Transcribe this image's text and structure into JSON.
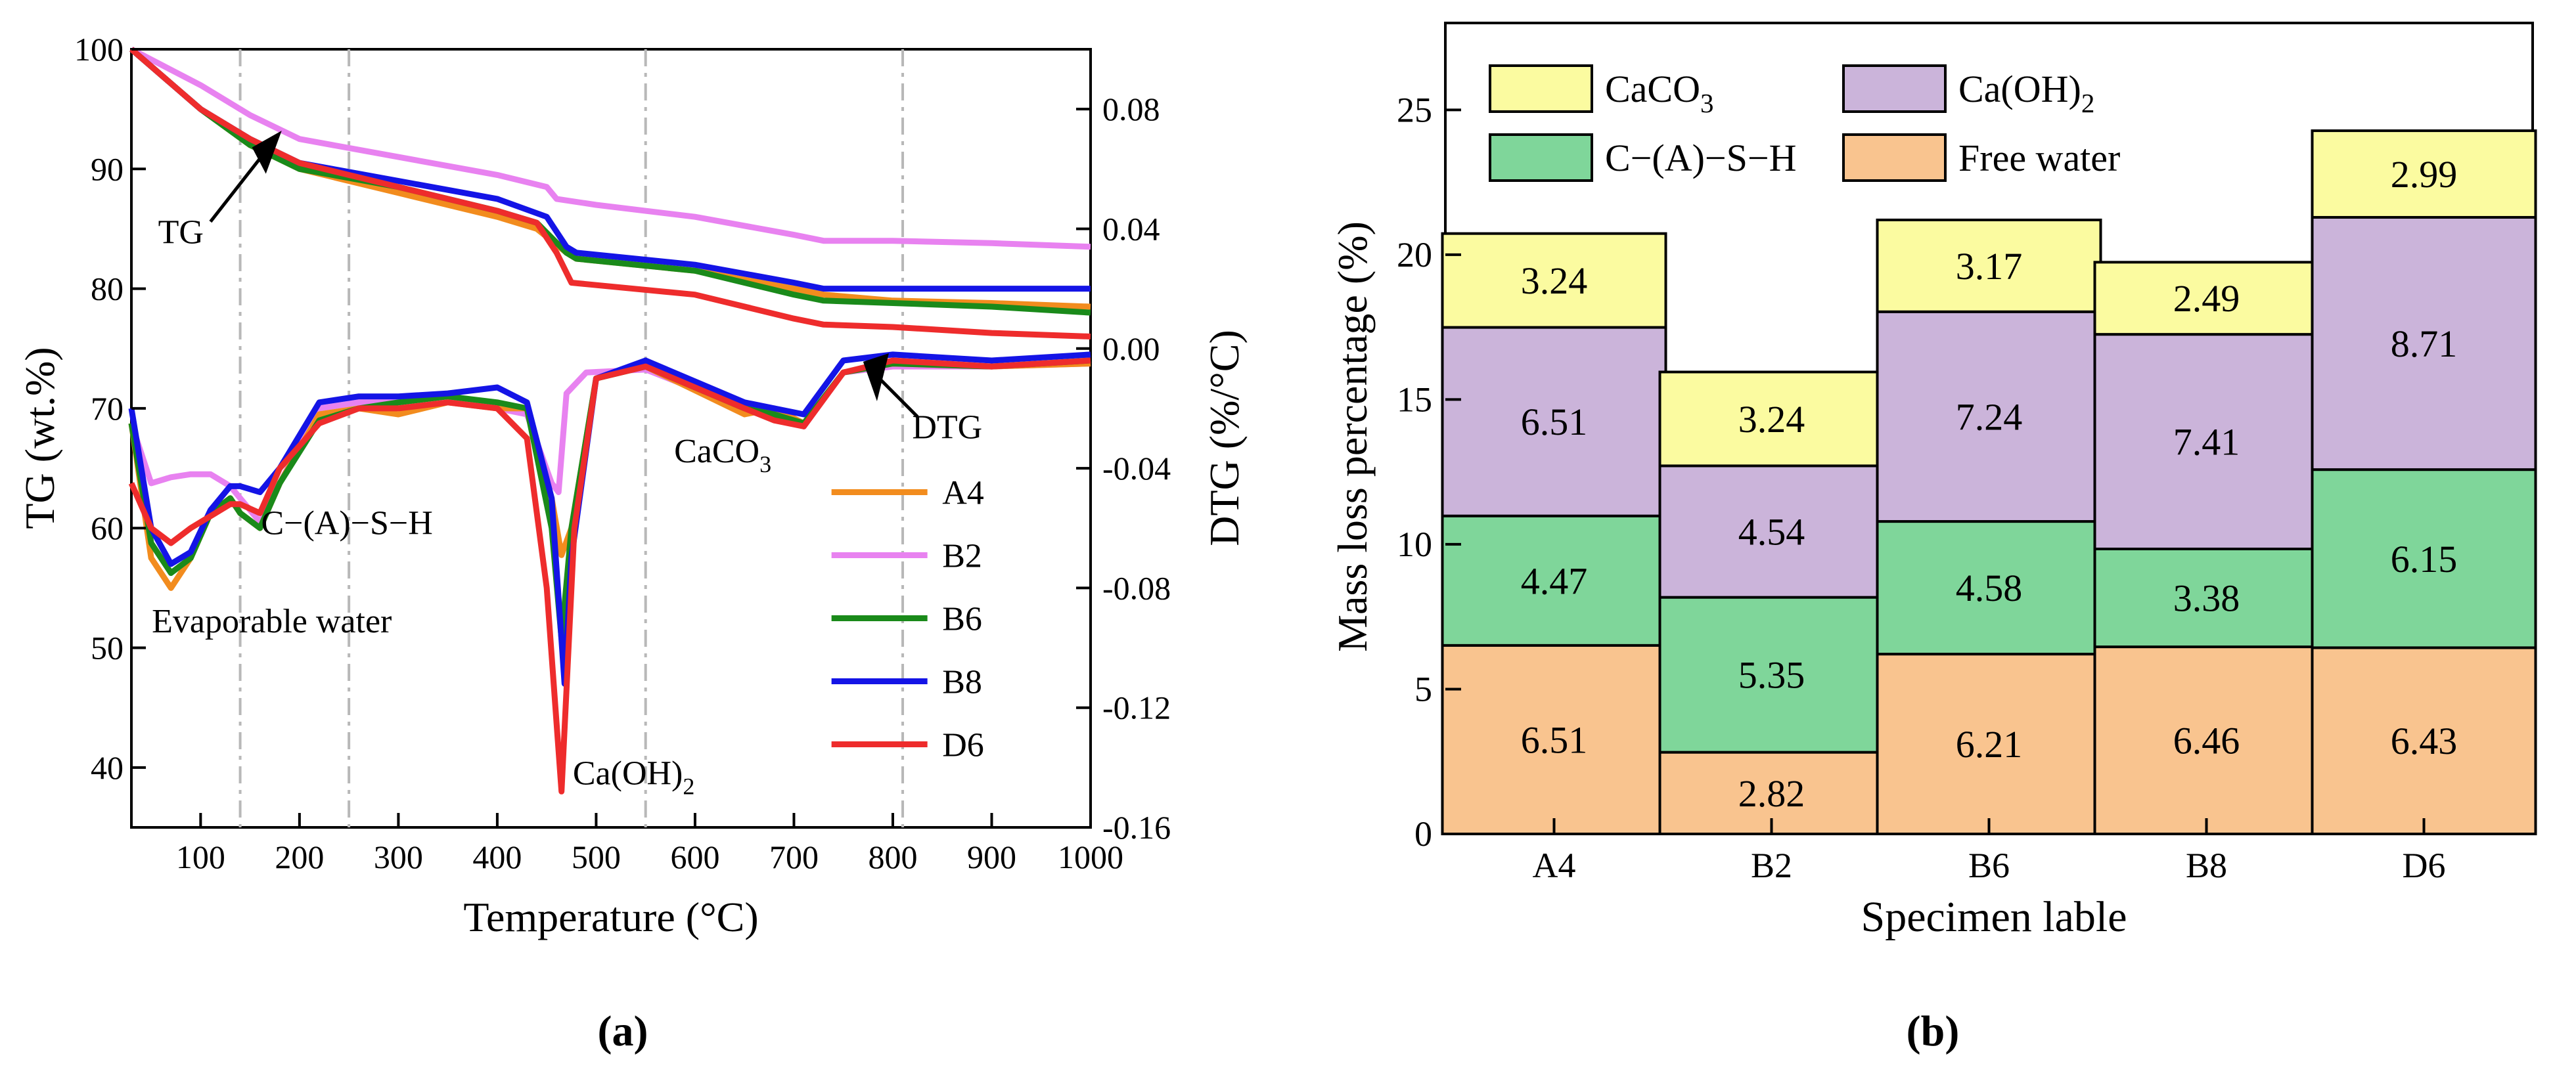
{
  "chart_data": [
    {
      "type": "line",
      "panel_label": "(a)",
      "xlabel": "Temperature (°C)",
      "ylabel": "TG (wt.%)",
      "y2label": "DTG (%/°C)",
      "xlim": [
        30,
        1000
      ],
      "ylim": [
        35,
        100
      ],
      "y2lim": [
        -0.16,
        0.1
      ],
      "x_ticks": [
        100,
        200,
        300,
        400,
        500,
        600,
        700,
        800,
        900,
        1000
      ],
      "y_ticks": [
        40,
        50,
        60,
        70,
        80,
        90,
        100
      ],
      "y2_ticks": [
        -0.16,
        -0.12,
        -0.08,
        -0.04,
        0.0,
        0.04,
        0.08
      ],
      "y2_tick_labels": [
        "-0.16",
        "-0.12",
        "-0.08",
        "-0.04",
        "0.00",
        "0.04",
        "0.08"
      ],
      "reference_lines_x": [
        140,
        250,
        550,
        810
      ],
      "legend": [
        "A4",
        "B2",
        "B6",
        "B8",
        "D6"
      ],
      "colors": {
        "A4": "#f28c1e",
        "B2": "#e882f0",
        "B6": "#1a8a1a",
        "B8": "#1414e6",
        "D6": "#ee2c2c"
      },
      "annotations": {
        "tg": "TG",
        "dtg": "DTG",
        "csh": "C−(A)−S−H",
        "evap": "Evaporable water",
        "caco3_base": "CaCO",
        "caco3_sub": "3",
        "caoh_base": "Ca(OH)",
        "caoh_sub": "2"
      },
      "tg_series": [
        {
          "name": "A4",
          "x": [
            30,
            100,
            150,
            200,
            300,
            400,
            440,
            470,
            480,
            600,
            700,
            730,
            800,
            900,
            1000
          ],
          "y": [
            100,
            95,
            92,
            90,
            88,
            86,
            85,
            83,
            82.5,
            81.5,
            80,
            79.5,
            79,
            78.8,
            78.5
          ]
        },
        {
          "name": "B2",
          "x": [
            30,
            100,
            150,
            200,
            300,
            400,
            450,
            460,
            500,
            600,
            700,
            730,
            800,
            900,
            1000
          ],
          "y": [
            100,
            97,
            94.5,
            92.5,
            91,
            89.5,
            88.5,
            87.5,
            87,
            86,
            84.5,
            84,
            84,
            83.8,
            83.5
          ]
        },
        {
          "name": "B6",
          "x": [
            30,
            100,
            150,
            200,
            300,
            400,
            440,
            470,
            480,
            600,
            700,
            730,
            800,
            900,
            1000
          ],
          "y": [
            100,
            95,
            92,
            90,
            88.5,
            86.5,
            85.5,
            83,
            82.5,
            81.5,
            79.5,
            79,
            78.8,
            78.5,
            78
          ]
        },
        {
          "name": "B8",
          "x": [
            30,
            100,
            150,
            200,
            300,
            400,
            450,
            470,
            480,
            600,
            700,
            730,
            800,
            900,
            1000
          ],
          "y": [
            100,
            95,
            92.5,
            90.5,
            89,
            87.5,
            86,
            83.5,
            83,
            82,
            80.5,
            80,
            80,
            80,
            80
          ]
        },
        {
          "name": "D6",
          "x": [
            30,
            100,
            150,
            200,
            300,
            400,
            440,
            460,
            475,
            600,
            700,
            730,
            800,
            900,
            1000
          ],
          "y": [
            100,
            95,
            92.5,
            90.5,
            88.5,
            86.5,
            85.5,
            83,
            80.5,
            79.5,
            77.5,
            77,
            76.8,
            76.3,
            76
          ]
        }
      ],
      "dtg_series": [
        {
          "name": "A4",
          "x": [
            30,
            50,
            70,
            90,
            110,
            130,
            140,
            160,
            180,
            220,
            260,
            300,
            350,
            400,
            430,
            455,
            465,
            475,
            500,
            550,
            650,
            680,
            710,
            750,
            800,
            900,
            1000
          ],
          "y": [
            -0.025,
            -0.07,
            -0.08,
            -0.07,
            -0.055,
            -0.05,
            -0.055,
            -0.06,
            -0.045,
            -0.022,
            -0.02,
            -0.022,
            -0.018,
            -0.02,
            -0.02,
            -0.05,
            -0.069,
            -0.06,
            -0.01,
            -0.006,
            -0.022,
            -0.02,
            -0.025,
            -0.008,
            -0.005,
            -0.006,
            -0.005
          ]
        },
        {
          "name": "B2",
          "x": [
            30,
            50,
            70,
            90,
            110,
            130,
            140,
            160,
            180,
            220,
            260,
            300,
            350,
            400,
            430,
            455,
            462,
            470,
            490,
            550,
            650,
            680,
            710,
            750,
            800,
            900,
            1000
          ],
          "y": [
            -0.025,
            -0.045,
            -0.043,
            -0.042,
            -0.042,
            -0.046,
            -0.05,
            -0.058,
            -0.045,
            -0.02,
            -0.018,
            -0.018,
            -0.016,
            -0.02,
            -0.022,
            -0.045,
            -0.048,
            -0.015,
            -0.008,
            -0.007,
            -0.02,
            -0.022,
            -0.026,
            -0.008,
            -0.006,
            -0.006,
            -0.005
          ]
        },
        {
          "name": "B6",
          "x": [
            30,
            50,
            70,
            90,
            110,
            130,
            140,
            160,
            180,
            220,
            260,
            300,
            350,
            400,
            430,
            455,
            465,
            475,
            500,
            550,
            650,
            680,
            710,
            750,
            800,
            900,
            1000
          ],
          "y": [
            -0.025,
            -0.065,
            -0.075,
            -0.07,
            -0.055,
            -0.05,
            -0.055,
            -0.06,
            -0.045,
            -0.024,
            -0.02,
            -0.018,
            -0.016,
            -0.018,
            -0.02,
            -0.06,
            -0.097,
            -0.06,
            -0.01,
            -0.006,
            -0.02,
            -0.022,
            -0.025,
            -0.008,
            -0.005,
            -0.006,
            -0.004
          ]
        },
        {
          "name": "B8",
          "x": [
            30,
            50,
            70,
            90,
            110,
            130,
            140,
            160,
            180,
            220,
            260,
            300,
            350,
            400,
            430,
            455,
            468,
            475,
            500,
            550,
            650,
            680,
            710,
            750,
            800,
            900,
            1000
          ],
          "y": [
            -0.02,
            -0.06,
            -0.072,
            -0.068,
            -0.054,
            -0.046,
            -0.046,
            -0.048,
            -0.04,
            -0.018,
            -0.016,
            -0.016,
            -0.015,
            -0.013,
            -0.018,
            -0.05,
            -0.112,
            -0.07,
            -0.01,
            -0.004,
            -0.018,
            -0.02,
            -0.022,
            -0.004,
            -0.002,
            -0.004,
            -0.002
          ]
        },
        {
          "name": "D6",
          "x": [
            30,
            50,
            70,
            90,
            110,
            130,
            140,
            160,
            180,
            220,
            260,
            300,
            350,
            400,
            430,
            450,
            465,
            478,
            500,
            550,
            650,
            680,
            710,
            750,
            800,
            900,
            1000
          ],
          "y": [
            -0.045,
            -0.06,
            -0.065,
            -0.06,
            -0.056,
            -0.052,
            -0.052,
            -0.055,
            -0.04,
            -0.025,
            -0.02,
            -0.02,
            -0.018,
            -0.02,
            -0.03,
            -0.08,
            -0.148,
            -0.06,
            -0.01,
            -0.006,
            -0.02,
            -0.024,
            -0.026,
            -0.008,
            -0.004,
            -0.006,
            -0.004
          ]
        }
      ]
    },
    {
      "type": "bar",
      "stacked": true,
      "panel_label": "(b)",
      "xlabel": "Specimen lable",
      "ylabel": "Mass loss percentage (%)",
      "ylim": [
        0,
        28
      ],
      "y_ticks": [
        0,
        5,
        10,
        15,
        20,
        25
      ],
      "categories": [
        "A4",
        "B2",
        "B6",
        "B8",
        "D6"
      ],
      "series": [
        {
          "name": "Free water",
          "color": "#f9c48f",
          "values": [
            6.51,
            2.82,
            6.21,
            6.46,
            6.43
          ],
          "labels": [
            "6.51",
            "2.82",
            "6.21",
            "6.46",
            "6.43"
          ]
        },
        {
          "name": "C−(A)−S−H",
          "color": "#7fd69a",
          "values": [
            4.47,
            5.35,
            4.58,
            3.38,
            6.15
          ],
          "labels": [
            "4.47",
            "5.35",
            "4.58",
            "3.38",
            "6.15"
          ]
        },
        {
          "name": "Ca(OH)",
          "name_sub": "2",
          "color": "#cbb4da",
          "values": [
            6.51,
            4.54,
            7.24,
            7.41,
            8.71
          ],
          "labels": [
            "6.51",
            "4.54",
            "7.24",
            "7.41",
            "8.71"
          ]
        },
        {
          "name": "CaCO",
          "name_sub": "3",
          "color": "#fbfba0",
          "values": [
            3.24,
            3.24,
            3.17,
            2.49,
            2.99
          ],
          "labels": [
            "3.24",
            "3.24",
            "3.17",
            "2.49",
            "2.99"
          ]
        }
      ]
    }
  ]
}
